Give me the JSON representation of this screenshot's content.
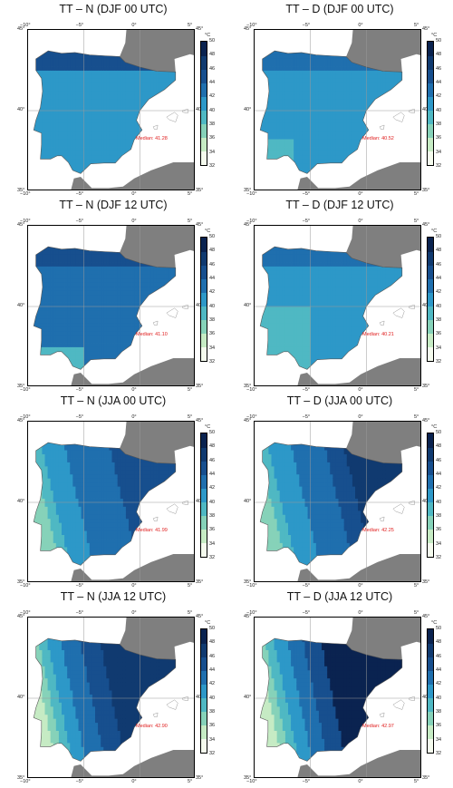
{
  "colorbar": {
    "unit": "°C",
    "ticks": [
      "50",
      "48",
      "46",
      "44",
      "42",
      "40",
      "38",
      "36",
      "34",
      "32"
    ],
    "levels": [
      32,
      34,
      36,
      38,
      40,
      42,
      44,
      46,
      48,
      50
    ],
    "colors": [
      "#f5fbee",
      "#c6ebc4",
      "#86d2b9",
      "#4fb8c3",
      "#2d98c8",
      "#1f6fae",
      "#174f8e",
      "#103a70",
      "#0a2350"
    ]
  },
  "axes": {
    "lon_labels": [
      "−10°",
      "−5°",
      "0°",
      "5°"
    ],
    "lat_labels": [
      "45°",
      "40°",
      "35°"
    ]
  },
  "colors": {
    "land_outside": "#7f7f7f",
    "grid": "#9a9a9a",
    "median_text": "#e02020"
  },
  "panels": [
    {
      "title": "TT – N (DJF 00 UTC)",
      "median": "Median: 41.28"
    },
    {
      "title": "TT – D (DJF 00 UTC)",
      "median": "Median: 40.52"
    },
    {
      "title": "TT – N (DJF 12 UTC)",
      "median": "Median: 41.10"
    },
    {
      "title": "TT – D (DJF 12 UTC)",
      "median": "Median: 40.21"
    },
    {
      "title": "TT – N (JJA 00 UTC)",
      "median": "Median: 41.99"
    },
    {
      "title": "TT – D (JJA 00 UTC)",
      "median": "Median: 42.25"
    },
    {
      "title": "TT – N (JJA 12 UTC)",
      "median": "Median: 42.90"
    },
    {
      "title": "TT – D (JJA 12 UTC)",
      "median": "Median: 42.97"
    }
  ]
}
